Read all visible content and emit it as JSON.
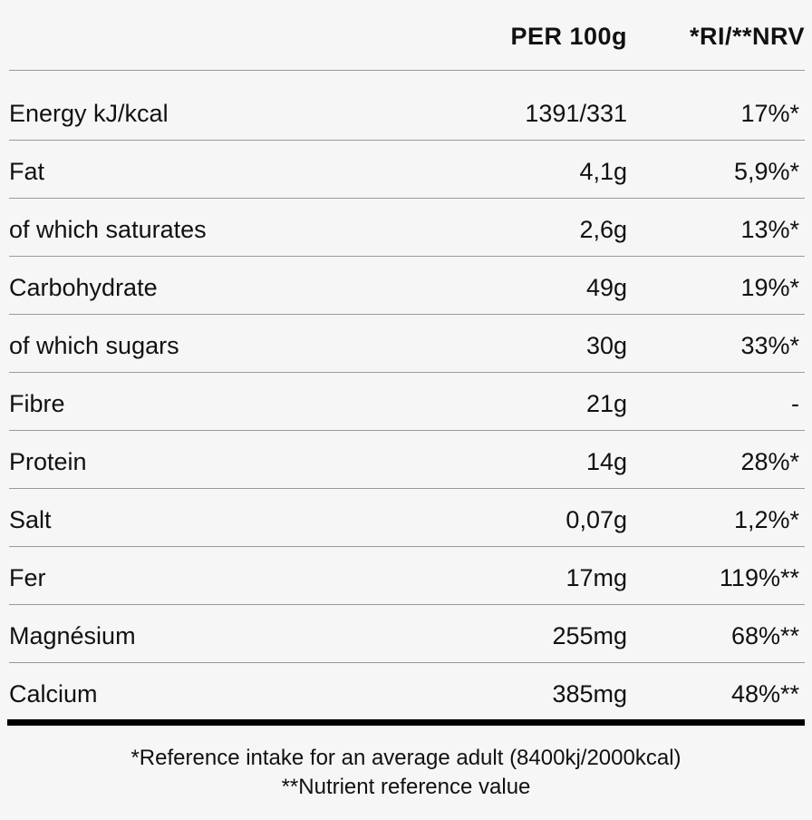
{
  "header": {
    "per_100g": "PER 100g",
    "ri_nrv": "*RI/**NRV"
  },
  "rows": [
    {
      "name": "Energy kJ/kcal",
      "per100g": "1391/331",
      "ri": "17%*"
    },
    {
      "name": "Fat",
      "per100g": "4,1g",
      "ri": "5,9%*"
    },
    {
      "name": "of which saturates",
      "per100g": "2,6g",
      "ri": "13%*"
    },
    {
      "name": "Carbohydrate",
      "per100g": "49g",
      "ri": "19%*"
    },
    {
      "name": "of which sugars",
      "per100g": "30g",
      "ri": "33%*"
    },
    {
      "name": "Fibre",
      "per100g": "21g",
      "ri": "-"
    },
    {
      "name": "Protein",
      "per100g": "14g",
      "ri": "28%*"
    },
    {
      "name": "Salt",
      "per100g": "0,07g",
      "ri": "1,2%*"
    },
    {
      "name": "Fer",
      "per100g": "17mg",
      "ri": "119%**"
    },
    {
      "name": "Magnésium",
      "per100g": "255mg",
      "ri": "68%**"
    },
    {
      "name": "Calcium",
      "per100g": "385mg",
      "ri": "48%**"
    }
  ],
  "footer": {
    "line1": "*Reference intake for an average adult (8400kj/2000kcal)",
    "line2": "**Nutrient reference value"
  }
}
